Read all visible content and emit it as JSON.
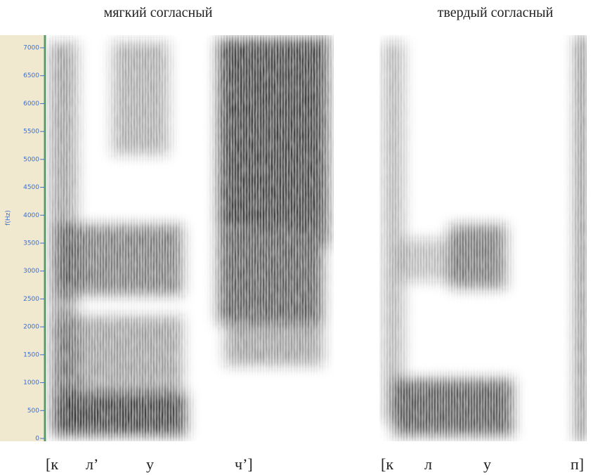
{
  "titles": [
    "мягкий согласный",
    "твердый согласный"
  ],
  "axis": {
    "label": "f(Hz)",
    "ticks": [
      0,
      500,
      1000,
      1500,
      2000,
      2500,
      3000,
      3500,
      4000,
      4500,
      5000,
      5500,
      6000,
      6500,
      7000
    ]
  },
  "segments": {
    "soft": [
      "[к",
      "л’",
      "у",
      "ч’]"
    ],
    "hard": [
      "[к",
      "л",
      "у",
      "п]"
    ]
  }
}
